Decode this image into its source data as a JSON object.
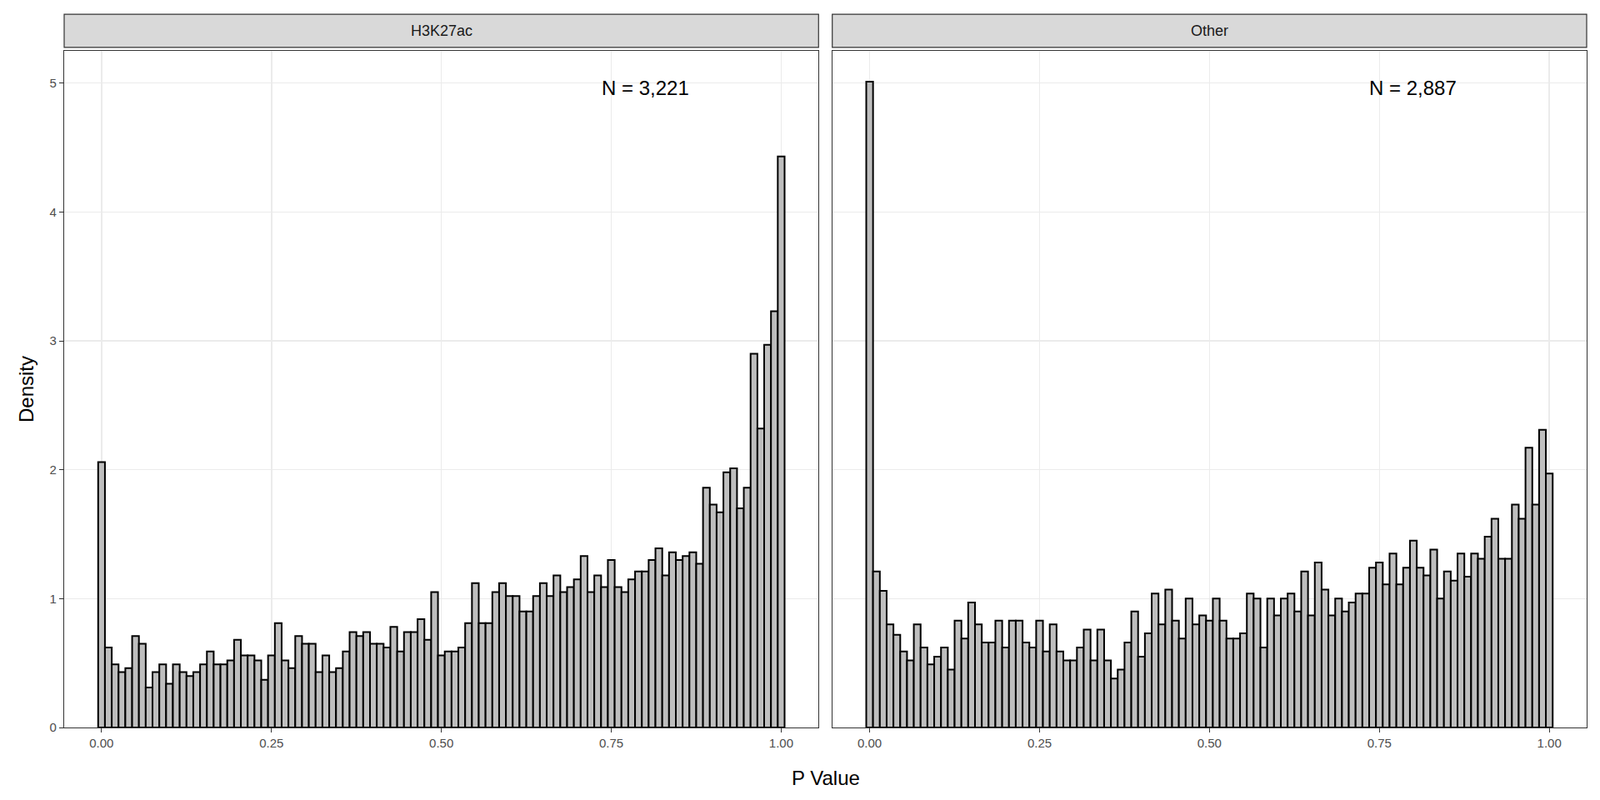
{
  "chart_data": [
    {
      "type": "histogram",
      "title": "H3K27ac",
      "x_label": "P Value",
      "y_label": "Density",
      "annotation": "N = 3,221",
      "color": "#bebebe",
      "grid": true,
      "xlim": [
        -0.055,
        1.055
      ],
      "xticks": [
        {
          "value": 0,
          "label": "0.00"
        },
        {
          "value": 0.25,
          "label": "0.25"
        },
        {
          "value": 0.5,
          "label": "0.50"
        },
        {
          "value": 0.75,
          "label": "0.75"
        },
        {
          "value": 1,
          "label": "1.00"
        }
      ],
      "ylim": [
        0,
        5.25
      ],
      "yticks": [
        0,
        1,
        2,
        3,
        4,
        5
      ],
      "bins": [
        -0.005,
        0.005,
        0.015,
        0.025,
        0.035,
        0.045,
        0.055,
        0.065,
        0.075,
        0.085,
        0.095,
        0.105,
        0.115,
        0.125,
        0.135,
        0.145,
        0.155,
        0.165,
        0.175,
        0.185,
        0.195,
        0.205,
        0.215,
        0.225,
        0.235,
        0.245,
        0.255,
        0.265,
        0.275,
        0.285,
        0.295,
        0.305,
        0.315,
        0.325,
        0.335,
        0.345,
        0.355,
        0.365,
        0.375,
        0.385,
        0.395,
        0.405,
        0.415,
        0.425,
        0.435,
        0.445,
        0.455,
        0.465,
        0.475,
        0.485,
        0.495,
        0.505,
        0.515,
        0.525,
        0.535,
        0.545,
        0.555,
        0.565,
        0.575,
        0.585,
        0.595,
        0.605,
        0.615,
        0.625,
        0.635,
        0.645,
        0.655,
        0.665,
        0.675,
        0.685,
        0.695,
        0.705,
        0.715,
        0.725,
        0.735,
        0.745,
        0.755,
        0.765,
        0.775,
        0.785,
        0.795,
        0.805,
        0.815,
        0.825,
        0.835,
        0.845,
        0.855,
        0.865,
        0.875,
        0.885,
        0.895,
        0.905,
        0.915,
        0.925,
        0.935,
        0.945,
        0.955,
        0.965,
        0.975,
        0.985,
        0.995,
        1.005
      ],
      "values": [
        2.06,
        0.62,
        0.49,
        0.43,
        0.46,
        0.71,
        0.65,
        0.31,
        0.43,
        0.49,
        0.34,
        0.49,
        0.43,
        0.4,
        0.43,
        0.49,
        0.59,
        0.49,
        0.49,
        0.52,
        0.68,
        0.56,
        0.56,
        0.52,
        0.37,
        0.56,
        0.81,
        0.52,
        0.46,
        0.71,
        0.65,
        0.65,
        0.43,
        0.56,
        0.43,
        0.46,
        0.59,
        0.74,
        0.71,
        0.74,
        0.65,
        0.65,
        0.62,
        0.78,
        0.59,
        0.74,
        0.74,
        0.84,
        0.68,
        1.05,
        0.56,
        0.59,
        0.59,
        0.62,
        0.81,
        1.12,
        0.81,
        0.81,
        1.05,
        1.12,
        1.02,
        1.02,
        0.9,
        0.9,
        1.02,
        1.12,
        1.02,
        1.18,
        1.05,
        1.09,
        1.15,
        1.33,
        1.05,
        1.18,
        1.09,
        1.3,
        1.09,
        1.05,
        1.15,
        1.21,
        1.21,
        1.3,
        1.39,
        1.18,
        1.36,
        1.3,
        1.33,
        1.36,
        1.27,
        1.86,
        1.73,
        1.67,
        1.98,
        2.01,
        1.7,
        1.86,
        2.9,
        2.32,
        2.97,
        3.23,
        4.43
      ]
    },
    {
      "type": "histogram",
      "title": "Other",
      "annotation": "N = 2,887",
      "color": "#bebebe",
      "grid": true,
      "tick_labels": "x",
      "xlim": [
        -0.055,
        1.055
      ],
      "xticks": [
        {
          "value": 0,
          "label": "0.00"
        },
        {
          "value": 0.25,
          "label": "0.25"
        },
        {
          "value": 0.5,
          "label": "0.50"
        },
        {
          "value": 0.75,
          "label": "0.75"
        },
        {
          "value": 1,
          "label": "1.00"
        }
      ],
      "ylim": [
        0,
        5.25
      ],
      "yticks": [
        0,
        1,
        2,
        3,
        4,
        5
      ],
      "bins": [
        -0.005,
        0.005,
        0.015,
        0.025,
        0.035,
        0.045,
        0.055,
        0.065,
        0.075,
        0.085,
        0.095,
        0.105,
        0.115,
        0.125,
        0.135,
        0.145,
        0.155,
        0.165,
        0.175,
        0.185,
        0.195,
        0.205,
        0.215,
        0.225,
        0.235,
        0.245,
        0.255,
        0.265,
        0.275,
        0.285,
        0.295,
        0.305,
        0.315,
        0.325,
        0.335,
        0.345,
        0.355,
        0.365,
        0.375,
        0.385,
        0.395,
        0.405,
        0.415,
        0.425,
        0.435,
        0.445,
        0.455,
        0.465,
        0.475,
        0.485,
        0.495,
        0.505,
        0.515,
        0.525,
        0.535,
        0.545,
        0.555,
        0.565,
        0.575,
        0.585,
        0.595,
        0.605,
        0.615,
        0.625,
        0.635,
        0.645,
        0.655,
        0.665,
        0.675,
        0.685,
        0.695,
        0.705,
        0.715,
        0.725,
        0.735,
        0.745,
        0.755,
        0.765,
        0.775,
        0.785,
        0.795,
        0.805,
        0.815,
        0.825,
        0.835,
        0.845,
        0.855,
        0.865,
        0.875,
        0.885,
        0.895,
        0.905,
        0.915,
        0.925,
        0.935,
        0.945,
        0.955,
        0.965,
        0.975,
        0.985,
        0.995,
        1.005
      ],
      "values": [
        5.01,
        1.21,
        1.06,
        0.8,
        0.72,
        0.59,
        0.52,
        0.8,
        0.62,
        0.49,
        0.55,
        0.62,
        0.45,
        0.83,
        0.69,
        0.97,
        0.8,
        0.66,
        0.66,
        0.83,
        0.62,
        0.83,
        0.83,
        0.66,
        0.62,
        0.83,
        0.59,
        0.8,
        0.59,
        0.52,
        0.52,
        0.62,
        0.76,
        0.52,
        0.76,
        0.52,
        0.38,
        0.45,
        0.66,
        0.9,
        0.55,
        0.73,
        1.04,
        0.8,
        1.07,
        0.83,
        0.69,
        1.0,
        0.8,
        0.87,
        0.83,
        1.0,
        0.83,
        0.69,
        0.69,
        0.73,
        1.04,
        1.0,
        0.62,
        1.0,
        0.87,
        1.0,
        1.04,
        0.9,
        1.21,
        0.87,
        1.28,
        1.07,
        0.87,
        1.0,
        0.9,
        0.97,
        1.04,
        1.04,
        1.24,
        1.28,
        1.11,
        1.35,
        1.11,
        1.24,
        1.45,
        1.24,
        1.18,
        1.38,
        1.0,
        1.21,
        1.14,
        1.35,
        1.17,
        1.35,
        1.31,
        1.48,
        1.62,
        1.31,
        1.31,
        1.73,
        1.62,
        2.17,
        1.73,
        2.31,
        1.97
      ]
    }
  ]
}
